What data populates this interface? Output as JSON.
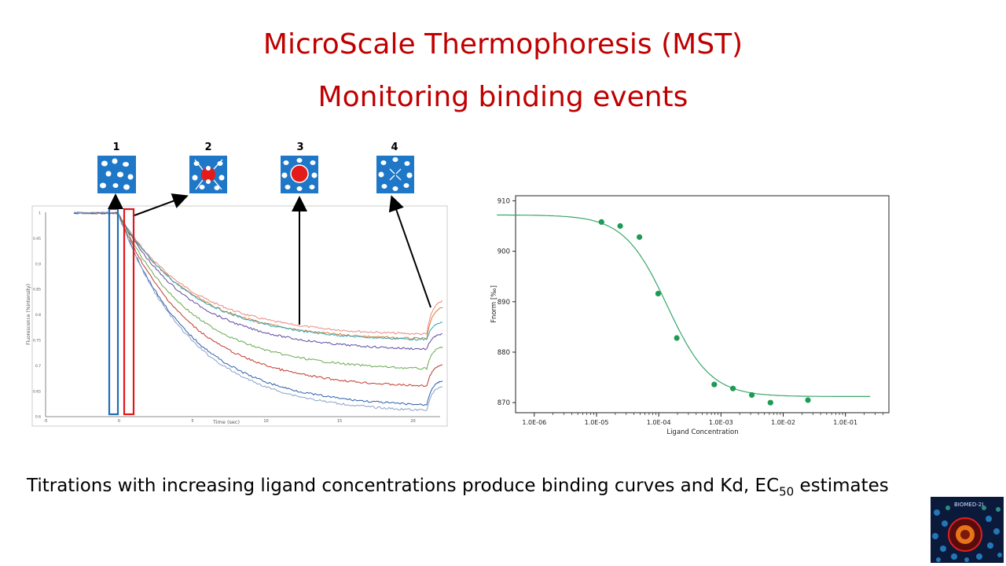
{
  "slide": {
    "title": "MicroScale Thermophoresis (MST)",
    "subtitle": "Monitoring binding events",
    "caption_main": "Titrations with increasing ligand concentrations produce binding curves and Kd, EC",
    "caption_sub": "50",
    "caption_end": " estimates"
  },
  "steps": [
    "1",
    "2",
    "3",
    "4"
  ],
  "colors": {
    "title": "#c00000",
    "step_box": "#1f77c8",
    "highlight_blue": "#1f6fb4",
    "highlight_red": "#e0181b",
    "fit": "#39a66a",
    "points": "#1f9a54"
  },
  "trace_plot": {
    "xlabel": "Time (sec)",
    "ylabel": "Fluorescence (%intensity)",
    "xticks": [
      "-5",
      "0",
      "5",
      "10",
      "15",
      "20"
    ],
    "yticks": [
      "1",
      "0.95",
      "0.9",
      "0.85",
      "0.8",
      "0.75",
      "0.7",
      "0.65",
      "0.6"
    ]
  },
  "logo": {
    "text": "BIOMED-2I"
  },
  "chart_data": {
    "type": "scatter",
    "title": "",
    "xlabel": "Ligand Concentration",
    "ylabel": "Fnorm [‰]",
    "x_scale": "log",
    "xticks": [
      "1.0E-06",
      "1.0E-05",
      "1.0E-04",
      "1.0E-03",
      "1.0E-02",
      "1.0E-01"
    ],
    "yticks": [
      "870",
      "880",
      "890",
      "900",
      "910"
    ],
    "ylim": [
      868,
      911
    ],
    "xlim": [
      5e-07,
      0.5
    ],
    "grid": false,
    "points": {
      "x": [
        1.2e-05,
        2.4e-05,
        4.9e-05,
        9.77e-05,
        0.000195,
        0.00078,
        0.00156,
        0.00313,
        0.00625,
        0.025
      ],
      "y": [
        905.8,
        905.0,
        902.8,
        891.6,
        882.8,
        873.6,
        872.8,
        871.5,
        870.0,
        870.5
      ]
    },
    "fit": {
      "top": 907.2,
      "bottom": 871.2,
      "ec50": 0.000137,
      "hill": 1.25,
      "x_range": [
        2.5e-07,
        0.25
      ]
    }
  }
}
